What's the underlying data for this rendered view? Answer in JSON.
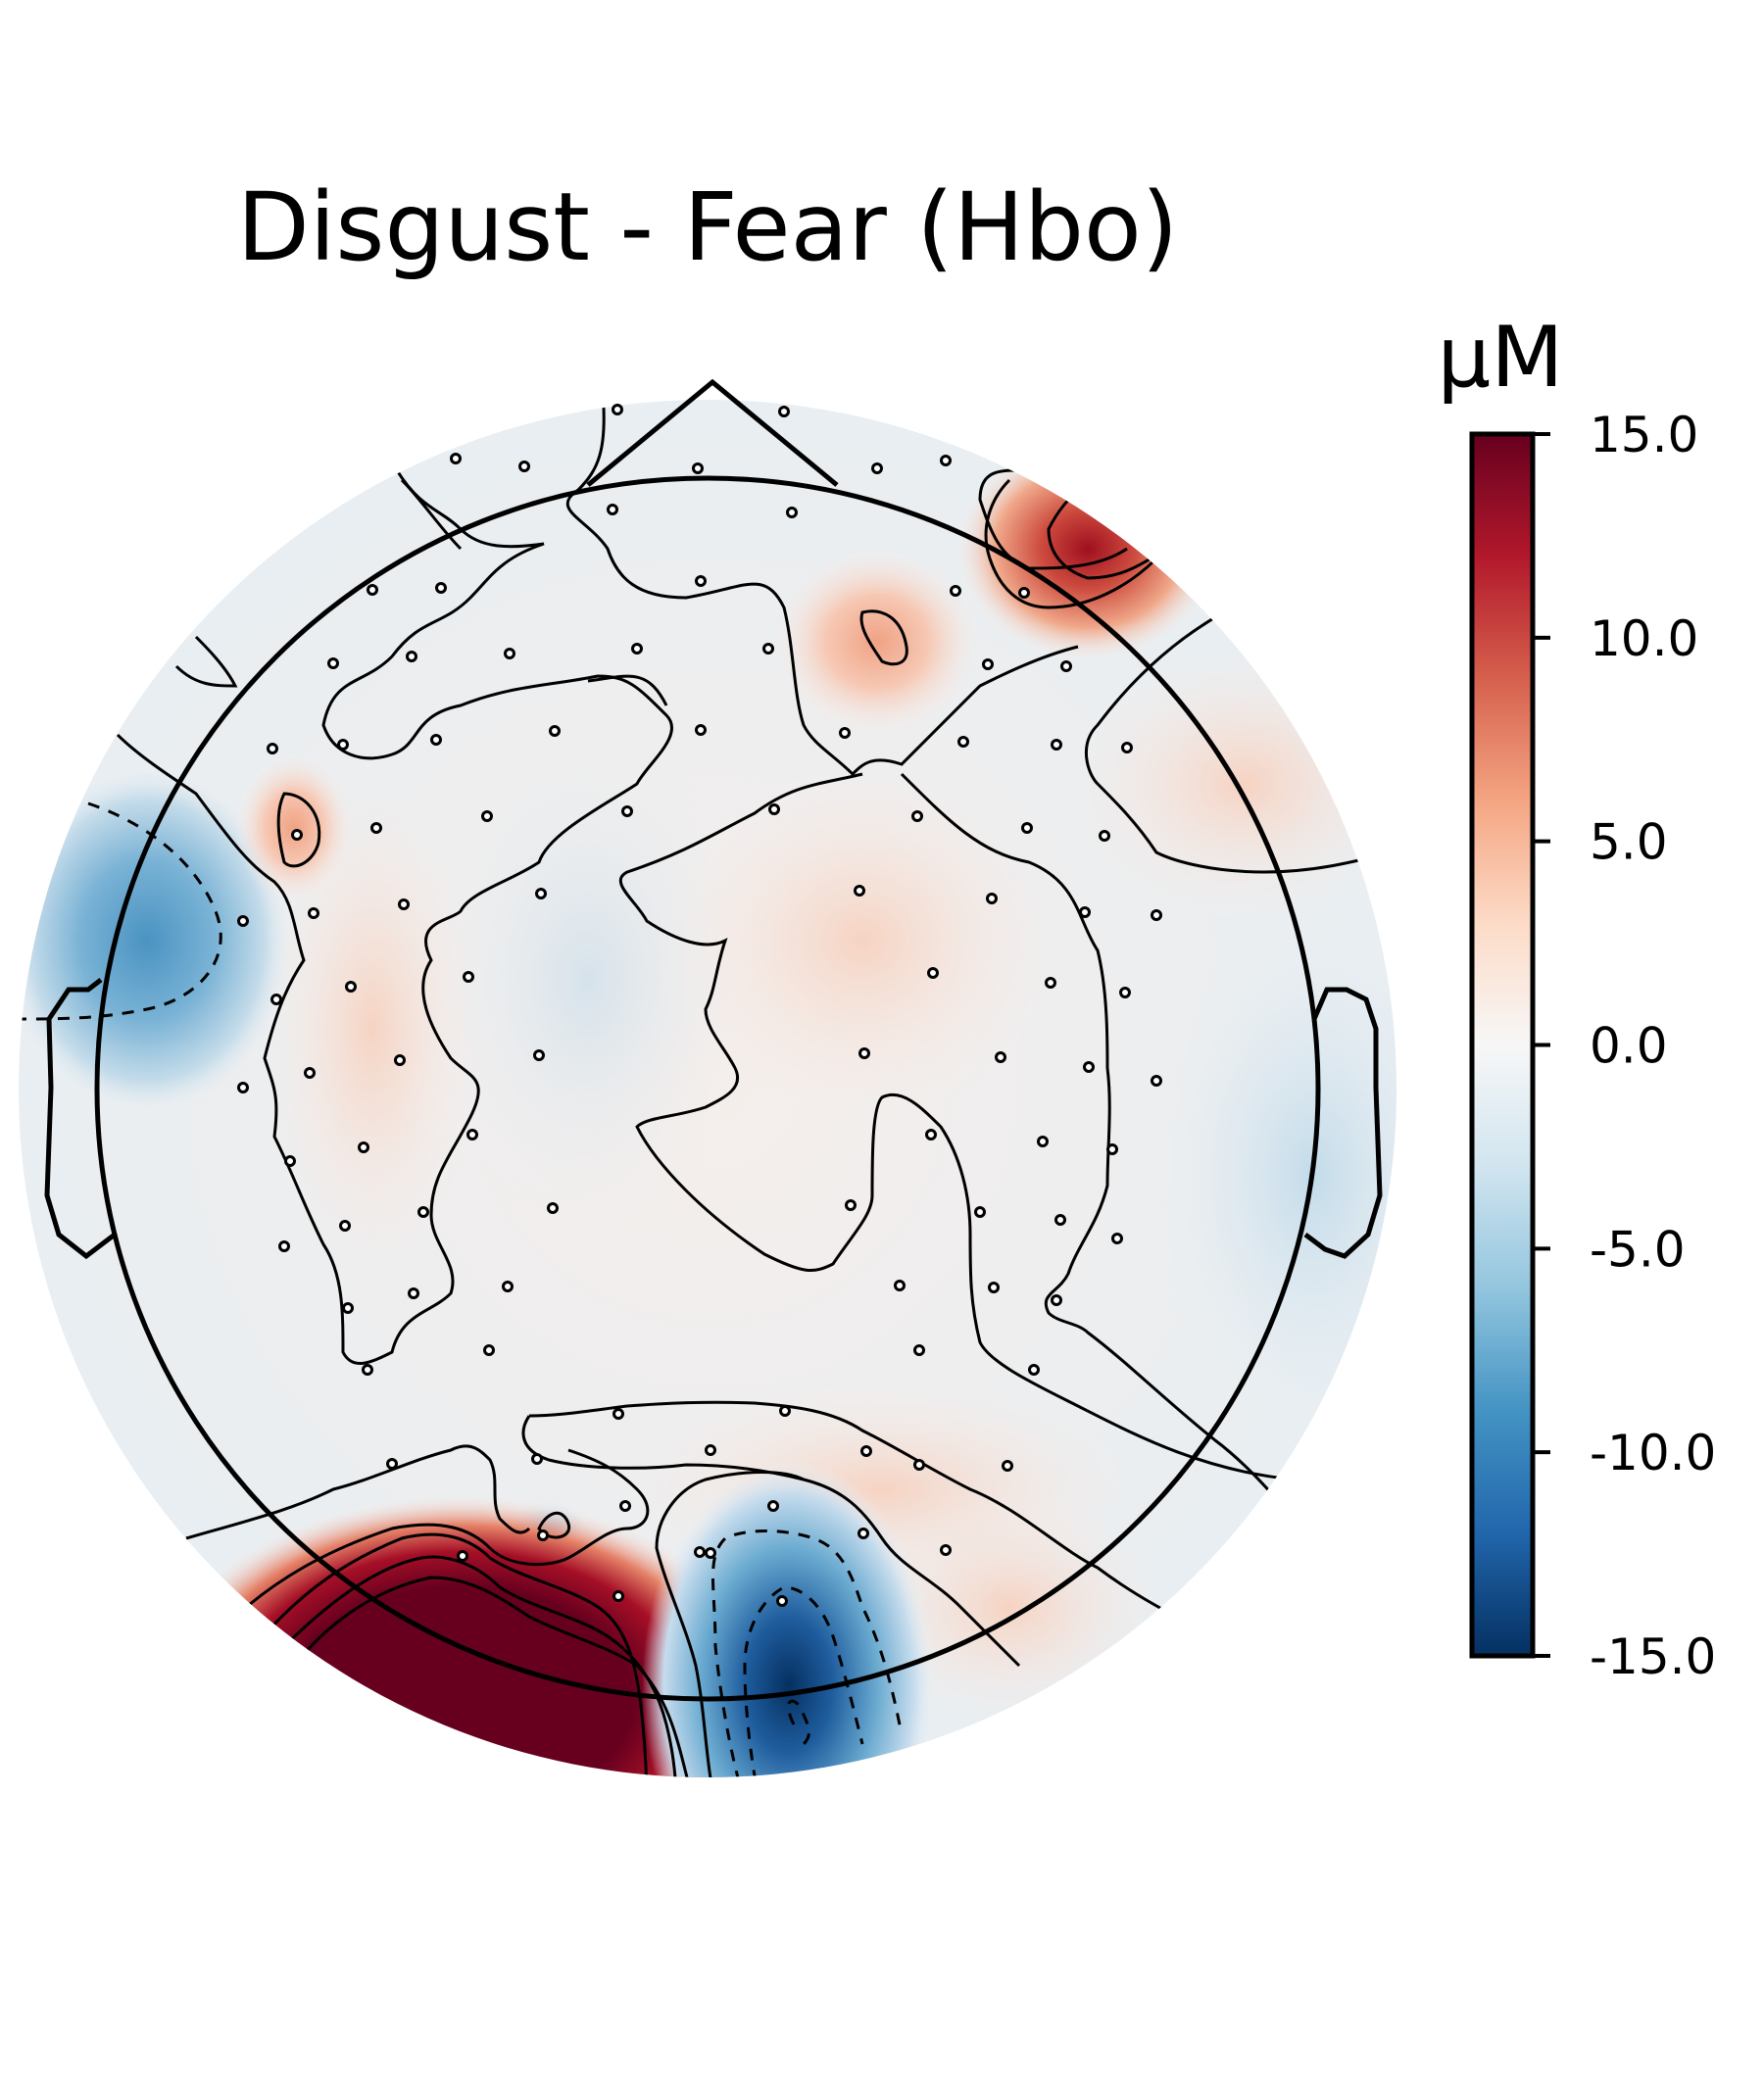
{
  "chart_data": {
    "type": "heatmap",
    "subtype": "topographic scalp map",
    "title": "Disgust - Fear (Hbo)",
    "colorbar": {
      "unit": "µM",
      "range": [
        -15.0,
        15.0
      ],
      "ticks": [
        "15.0",
        "10.0",
        "5.0",
        "0.0",
        "-5.0",
        "-10.0",
        "-15.0"
      ],
      "tick_values": [
        15,
        10,
        5,
        0,
        -5,
        -10,
        -15
      ],
      "colormap": "RdBu_r",
      "colors": [
        "#053061",
        "#2166ac",
        "#4393c3",
        "#92c5de",
        "#d1e5f0",
        "#f7f7f7",
        "#fddbc7",
        "#f4a582",
        "#d6604d",
        "#b2182b",
        "#67001f"
      ]
    },
    "extrema": [
      {
        "region": "posterior left",
        "value": 15.0
      },
      {
        "region": "posterior right-of-midline",
        "value": -15.0
      },
      {
        "region": "frontal right",
        "value": 12.0
      },
      {
        "region": "temporal left",
        "value": -7.0
      },
      {
        "region": "frontal right-of-midline",
        "value": 6.0
      },
      {
        "region": "frontal left",
        "value": 5.0
      }
    ]
  }
}
